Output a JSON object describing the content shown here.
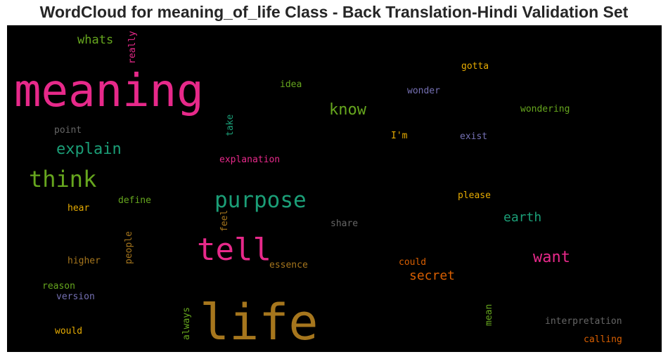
{
  "chart_data": {
    "type": "wordcloud",
    "title": "WordCloud for meaning_of_life Class - Back Translation-Hindi Validation Set",
    "background": "#000000",
    "palette": "Dark2",
    "words": [
      {
        "text": "meaning",
        "color": "#e7298a"
      },
      {
        "text": "life",
        "color": "#a6761d"
      },
      {
        "text": "tell",
        "color": "#e7298a"
      },
      {
        "text": "purpose",
        "color": "#1b9e77"
      },
      {
        "text": "think",
        "color": "#66a61e"
      },
      {
        "text": "explain",
        "color": "#1b9e77"
      },
      {
        "text": "know",
        "color": "#66a61e"
      },
      {
        "text": "want",
        "color": "#e7298a"
      },
      {
        "text": "secret",
        "color": "#d95f02"
      },
      {
        "text": "earth",
        "color": "#1b9e77"
      },
      {
        "text": "whats",
        "color": "#66a61e"
      },
      {
        "text": "really",
        "color": "#e7298a"
      },
      {
        "text": "gotta",
        "color": "#e6ab02"
      },
      {
        "text": "idea",
        "color": "#66a61e"
      },
      {
        "text": "wonder",
        "color": "#7570b3"
      },
      {
        "text": "wondering",
        "color": "#66a61e"
      },
      {
        "text": "point",
        "color": "#666666"
      },
      {
        "text": "take",
        "color": "#1b9e77"
      },
      {
        "text": "I'm",
        "color": "#e6ab02"
      },
      {
        "text": "exist",
        "color": "#7570b3"
      },
      {
        "text": "explanation",
        "color": "#e7298a"
      },
      {
        "text": "define",
        "color": "#66a61e"
      },
      {
        "text": "hear",
        "color": "#e6ab02"
      },
      {
        "text": "please",
        "color": "#e6ab02"
      },
      {
        "text": "feel",
        "color": "#a6761d"
      },
      {
        "text": "people",
        "color": "#a6761d"
      },
      {
        "text": "share",
        "color": "#666666"
      },
      {
        "text": "higher",
        "color": "#a6761d"
      },
      {
        "text": "essence",
        "color": "#a6761d"
      },
      {
        "text": "could",
        "color": "#d95f02"
      },
      {
        "text": "reason",
        "color": "#66a61e"
      },
      {
        "text": "version",
        "color": "#7570b3"
      },
      {
        "text": "always",
        "color": "#66a61e"
      },
      {
        "text": "mean",
        "color": "#66a61e"
      },
      {
        "text": "interpretation",
        "color": "#666666"
      },
      {
        "text": "would",
        "color": "#e6ab02"
      },
      {
        "text": "calling",
        "color": "#d95f02"
      }
    ]
  }
}
